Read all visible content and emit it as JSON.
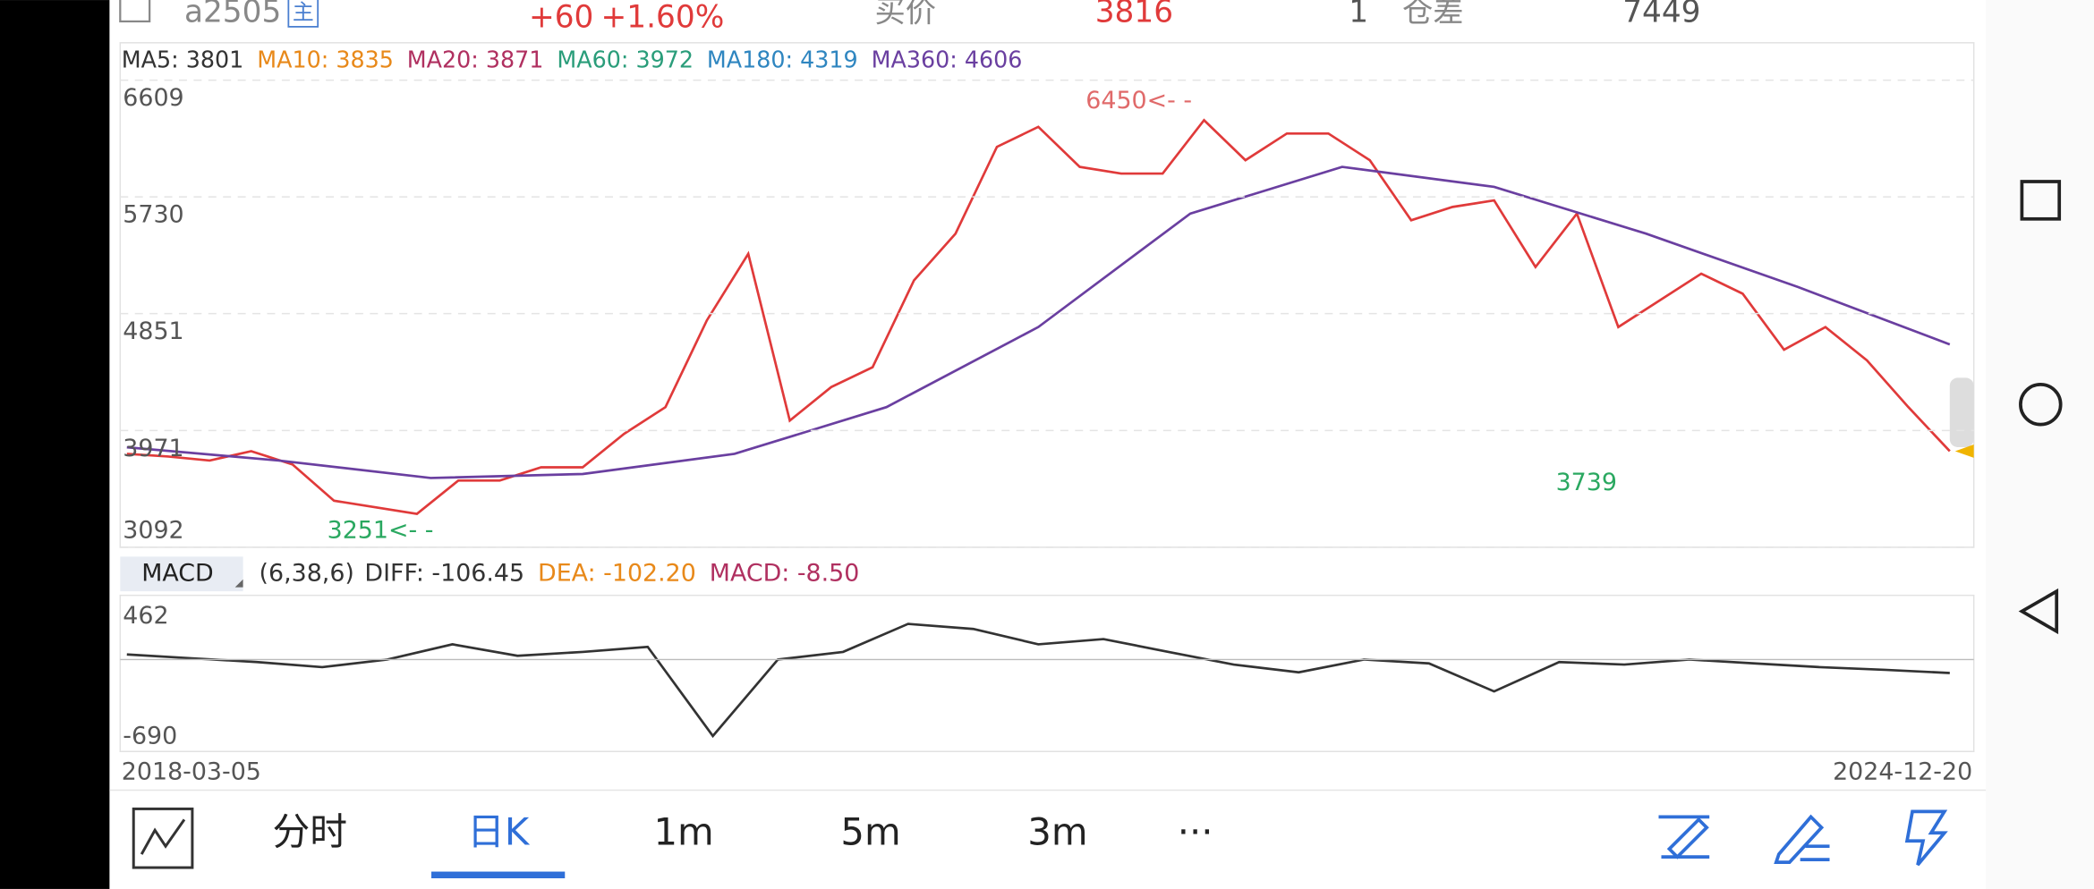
{
  "header": {
    "symbol": "a2505",
    "tag": "主",
    "change": "+60",
    "change_pct": "+1.60%",
    "bid_label": "买价",
    "bid": "3816",
    "qty": "1",
    "oi_label": "仓差",
    "oi": "7449"
  },
  "price_chart": {
    "type": "line",
    "ma_legend": [
      {
        "label": "MA5: 3801",
        "color": "#333333"
      },
      {
        "label": "MA10: 3835",
        "color": "#e8891a"
      },
      {
        "label": "MA20: 3871",
        "color": "#b03060"
      },
      {
        "label": "MA60: 3972",
        "color": "#2a9d7a"
      },
      {
        "label": "MA180: 4319",
        "color": "#2f86c0"
      },
      {
        "label": "MA360: 4606",
        "color": "#6a3fa0"
      }
    ],
    "ylim": [
      3092,
      6609
    ],
    "yticks": [
      6609,
      5730,
      4851,
      3971,
      3092
    ],
    "grid": true,
    "series": [
      {
        "color": "#e03a3a",
        "values": [
          3795,
          3775,
          3745,
          3815,
          3715,
          3443,
          3393,
          3343,
          3594,
          3594,
          3694,
          3694,
          3946,
          4147,
          4800,
          5302,
          4046,
          4298,
          4448,
          5102,
          5453,
          6107,
          6257,
          5956,
          5906,
          5906,
          6308,
          6006,
          6207,
          6207,
          6006,
          5554,
          5654,
          5704,
          5202,
          5604,
          4750,
          4951,
          5152,
          5001,
          4579,
          4750,
          4499,
          4147,
          3815
        ]
      },
      {
        "color": "#6a3fa0",
        "values": [
          3845,
          3745,
          3614,
          3644,
          3795,
          4147,
          4750,
          5604,
          5956,
          5805,
          5453,
          5051,
          4619
        ]
      }
    ],
    "annotations": [
      {
        "text": "6450<- -",
        "color": "#e06a6a"
      },
      {
        "text": "3251<- -",
        "color": "#2aa860"
      },
      {
        "text": "3739",
        "color": "#2aa860"
      }
    ]
  },
  "macd_chart": {
    "type": "line",
    "tab": "MACD",
    "params": "(6,38,6)",
    "legend": [
      {
        "label": "DIFF: -106.45",
        "color": "#333333"
      },
      {
        "label": "DEA: -102.20",
        "color": "#e8891a"
      },
      {
        "label": "MACD: -8.50",
        "color": "#b03060"
      }
    ],
    "ylim": [
      -690,
      462
    ],
    "yticks": [
      462,
      -690
    ],
    "series": [
      {
        "color": "#333333",
        "values": [
          40,
          10,
          -20,
          -60,
          0,
          120,
          30,
          60,
          100,
          -600,
          0,
          60,
          280,
          240,
          120,
          160,
          60,
          -40,
          -100,
          0,
          -30,
          -250,
          -20,
          -40,
          0,
          -30,
          -60,
          -80,
          -106
        ]
      }
    ]
  },
  "dates": [
    "2018-03-05",
    "2024-12-20"
  ],
  "toolbar": {
    "tabs": [
      "分时",
      "日K",
      "1m",
      "5m",
      "3m",
      "···"
    ],
    "active": 1
  }
}
